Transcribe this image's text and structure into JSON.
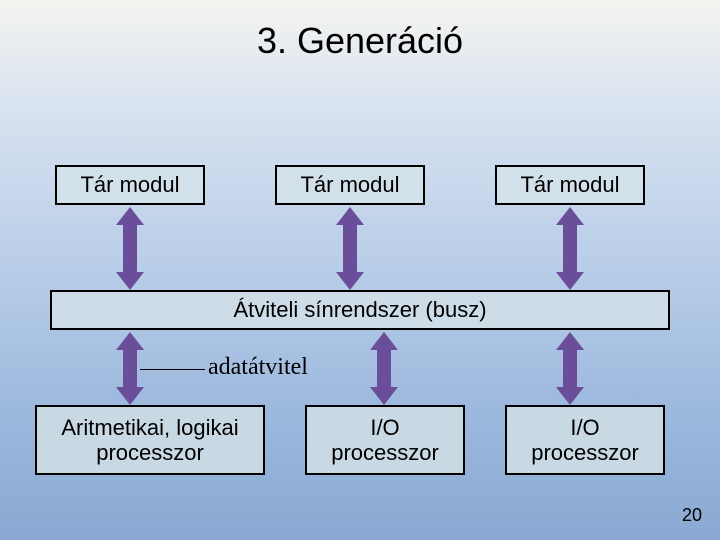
{
  "title": "3. Generáció",
  "page_number": "20",
  "boxes": {
    "tar1": {
      "label": "Tár modul",
      "bg": "#d2e0ea"
    },
    "tar2": {
      "label": "Tár modul",
      "bg": "#d2e0ea"
    },
    "tar3": {
      "label": "Tár modul",
      "bg": "#d2e0ea"
    },
    "bus": {
      "label": "Átviteli sínrendszer (busz)",
      "bg": "#cddce6"
    },
    "alp": {
      "label_line1": "Aritmetikai, logikai",
      "label_line2": "processzor",
      "bg": "#c9d9e4"
    },
    "io1": {
      "label_line1": "I/O",
      "label_line2": "processzor",
      "bg": "#c9d9e4"
    },
    "io2": {
      "label_line1": "I/O",
      "label_line2": "processzor",
      "bg": "#c9d9e4"
    }
  },
  "arrow_color": "#6a4e9a",
  "annotation": {
    "label": "adatátvitel"
  }
}
